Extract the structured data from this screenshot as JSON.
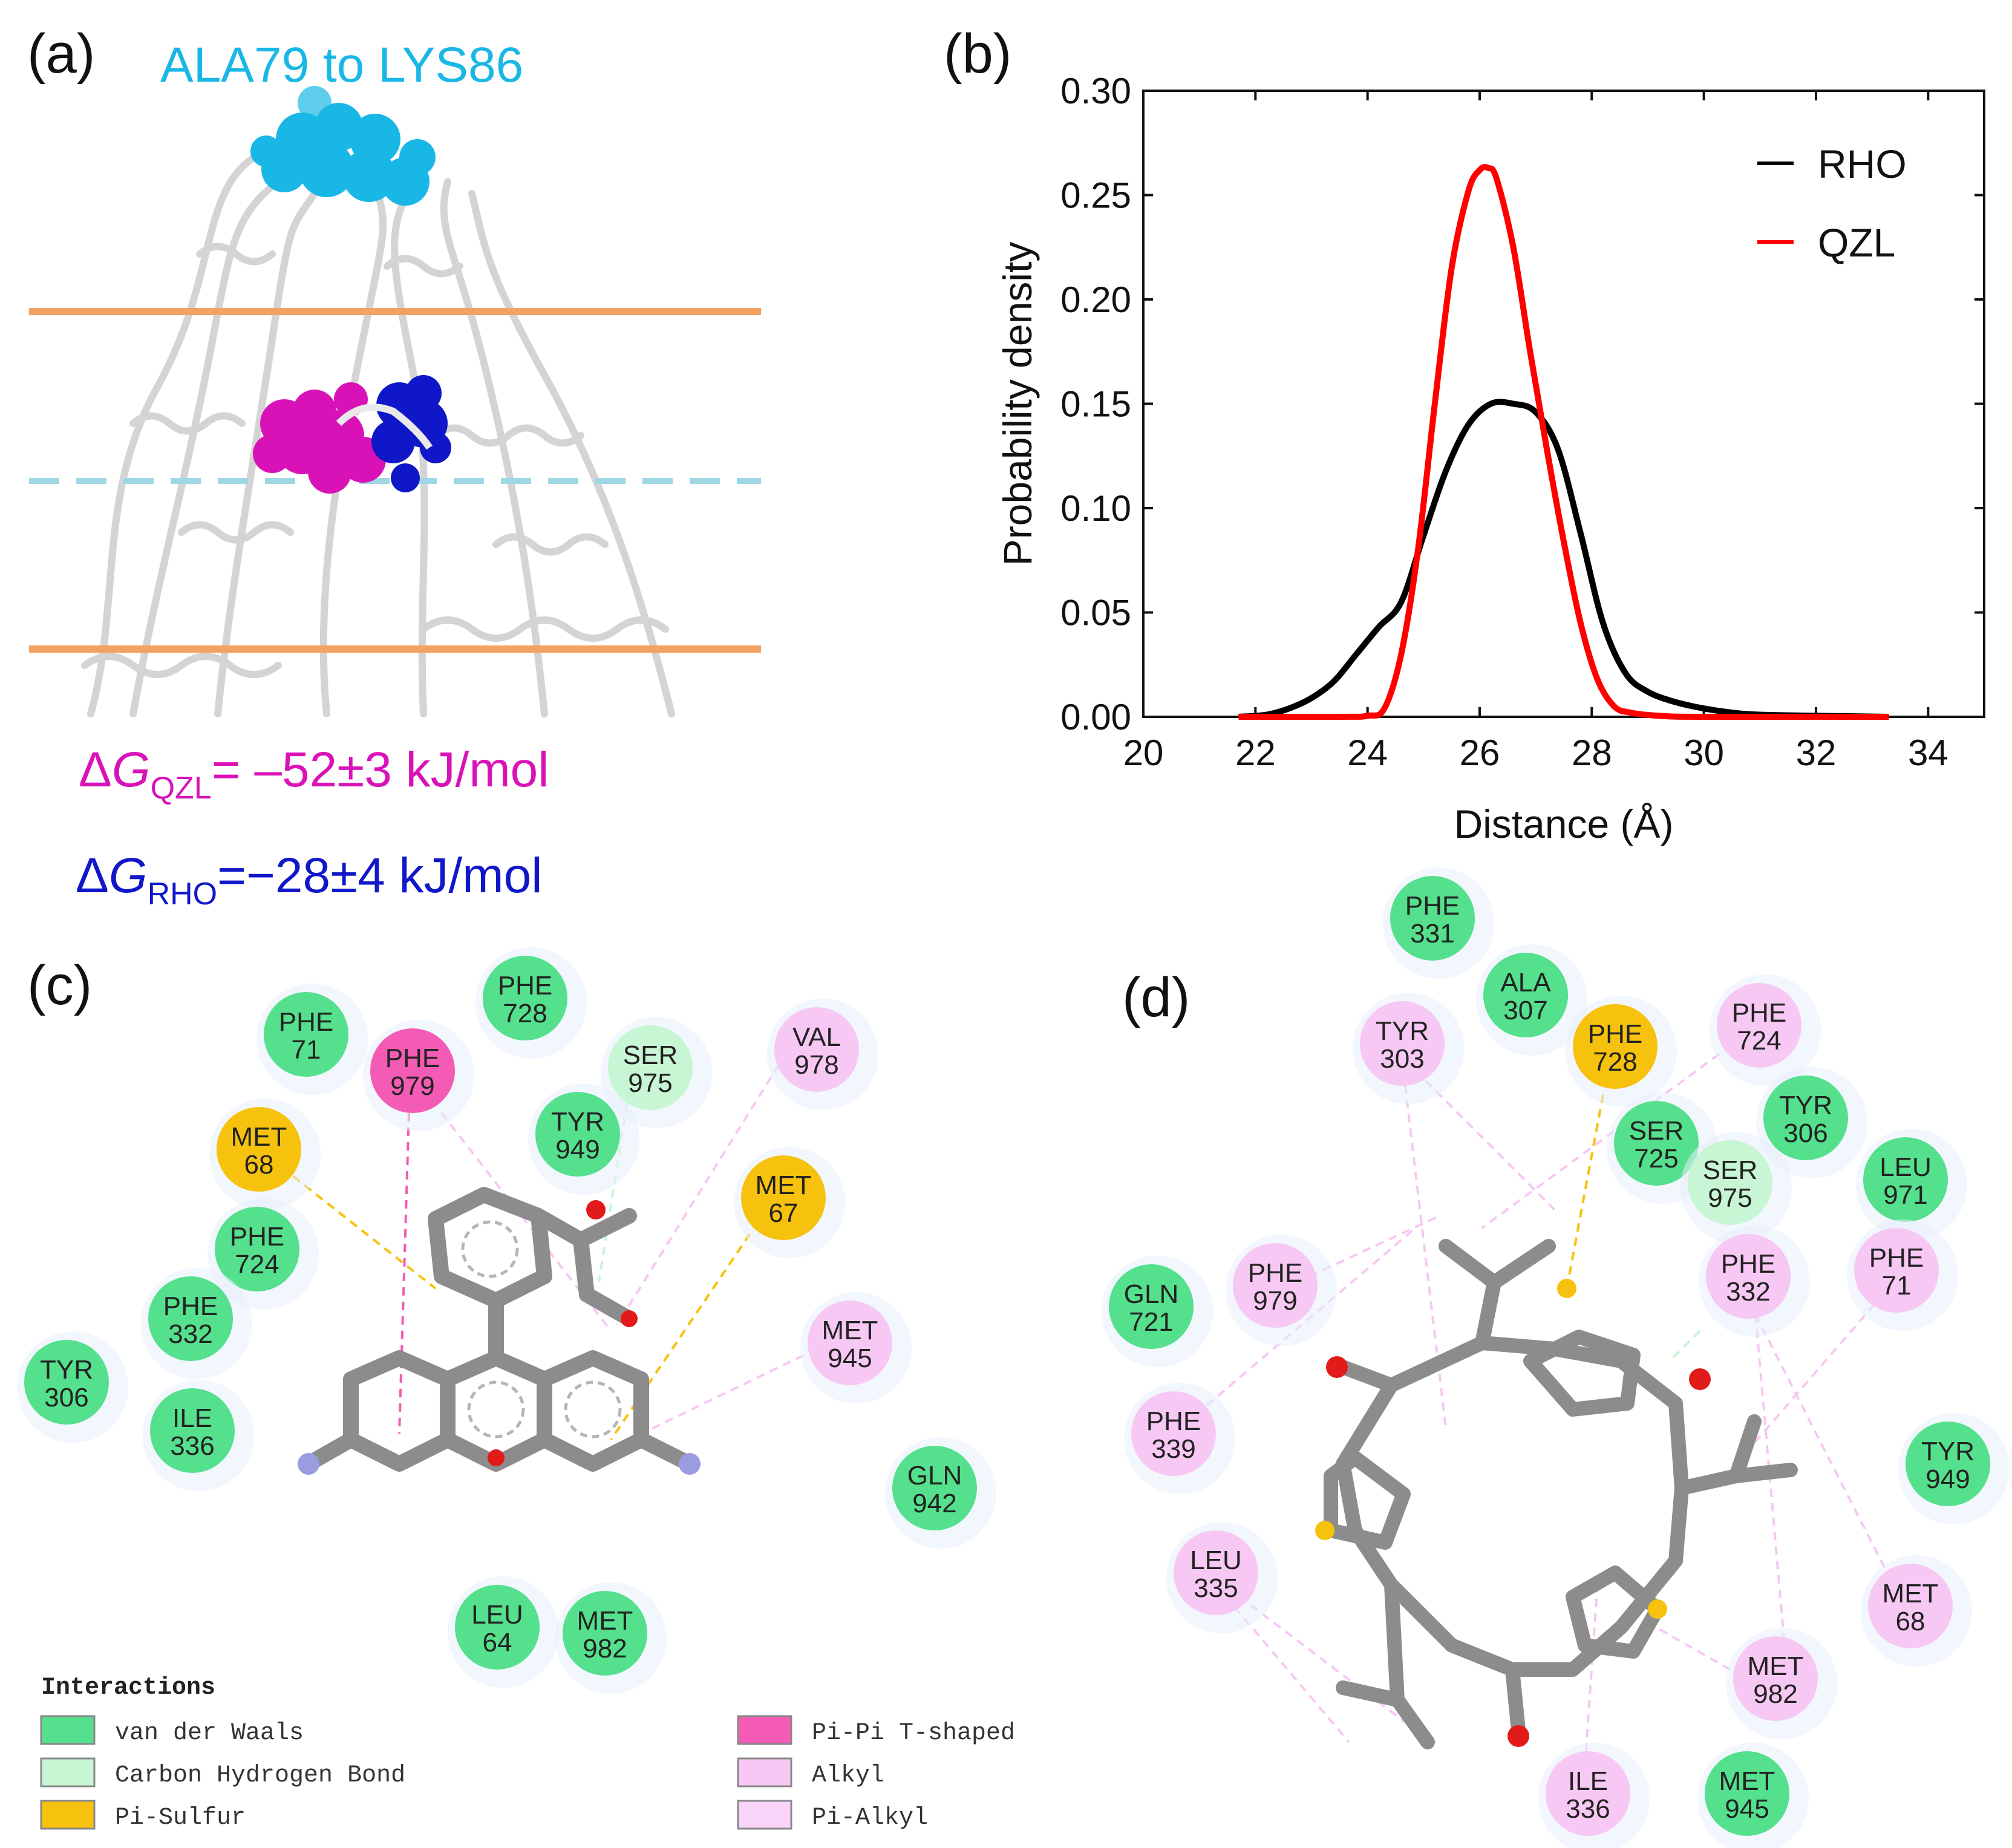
{
  "colors": {
    "cyan": "#19b7e6",
    "magenta": "#d912b8",
    "blue": "#1017c8",
    "orange": "#f4a261",
    "dash": "#9fd8e4",
    "rho": "#000000",
    "qzl": "#ff0000",
    "vdw": "#54e08c",
    "chb": "#c8f5d4",
    "pisulfur": "#f6c20e",
    "pipi": "#f35bb4",
    "alkyl": "#f7c8f3",
    "pialkyl": "#fad3f8",
    "bond": "#8c8c8c"
  },
  "panel_a": {
    "label": "(a)",
    "region_label": "ALA79 to LYS86",
    "dg_qzl": {
      "prefix": "Δ",
      "g": "G",
      "sub": "QZL",
      "value": "= –52±3 kJ/mol"
    },
    "dg_rho": {
      "prefix": "Δ",
      "g": "G",
      "sub": "RHO",
      "value": "=−28±4 kJ/mol"
    }
  },
  "panel_b": {
    "label": "(b)"
  },
  "chart_data": {
    "type": "line",
    "xlabel": "Distance (Å)",
    "ylabel": "Probability density",
    "xlim": [
      20,
      35
    ],
    "ylim": [
      0,
      0.3
    ],
    "xticks": [
      20,
      22,
      24,
      26,
      28,
      30,
      32,
      34
    ],
    "yticks": [
      0.0,
      0.05,
      0.1,
      0.15,
      0.2,
      0.25,
      0.3
    ],
    "ytick_labels": [
      "0.00",
      "0.05",
      "0.10",
      "0.15",
      "0.20",
      "0.25",
      "0.30"
    ],
    "legend_position": "top-right",
    "series": [
      {
        "name": "RHO",
        "color": "#000000",
        "x": [
          21.7,
          22.2,
          22.6,
          23.0,
          23.4,
          23.8,
          24.2,
          24.6,
          25.0,
          25.4,
          25.8,
          26.2,
          26.6,
          27.0,
          27.4,
          27.8,
          28.2,
          28.6,
          29.0,
          29.5,
          30.0,
          30.5,
          31.0,
          32.0,
          33.3
        ],
        "y": [
          0.0,
          0.001,
          0.004,
          0.009,
          0.017,
          0.03,
          0.043,
          0.055,
          0.087,
          0.118,
          0.14,
          0.15,
          0.15,
          0.146,
          0.128,
          0.088,
          0.045,
          0.021,
          0.012,
          0.007,
          0.004,
          0.002,
          0.001,
          0.0005,
          0.0
        ]
      },
      {
        "name": "QZL",
        "color": "#ff0000",
        "x": [
          21.7,
          23.5,
          24.0,
          24.3,
          24.6,
          24.9,
          25.2,
          25.5,
          25.8,
          26.0,
          26.15,
          26.3,
          26.6,
          26.9,
          27.2,
          27.5,
          27.8,
          28.1,
          28.4,
          28.7,
          29.2,
          30.0,
          33.3
        ],
        "y": [
          0.0,
          0.0,
          0.0005,
          0.004,
          0.03,
          0.08,
          0.15,
          0.215,
          0.252,
          0.262,
          0.263,
          0.258,
          0.225,
          0.175,
          0.128,
          0.084,
          0.045,
          0.018,
          0.005,
          0.002,
          0.0005,
          0.0,
          0.0
        ]
      }
    ]
  },
  "panel_c": {
    "label": "(c)",
    "residues": [
      {
        "id": "phe728",
        "name": "PHE",
        "num": "728",
        "type": "vdw"
      },
      {
        "id": "phe71",
        "name": "PHE",
        "num": "71",
        "type": "vdw"
      },
      {
        "id": "phe979",
        "name": "PHE",
        "num": "979",
        "type": "pipi"
      },
      {
        "id": "ser975",
        "name": "SER",
        "num": "975",
        "type": "chb"
      },
      {
        "id": "val978",
        "name": "VAL",
        "num": "978",
        "type": "alkyl"
      },
      {
        "id": "tyr949",
        "name": "TYR",
        "num": "949",
        "type": "vdw"
      },
      {
        "id": "met68",
        "name": "MET",
        "num": "68",
        "type": "pisulfur"
      },
      {
        "id": "met67",
        "name": "MET",
        "num": "67",
        "type": "pisulfur"
      },
      {
        "id": "phe724",
        "name": "PHE",
        "num": "724",
        "type": "vdw"
      },
      {
        "id": "phe332",
        "name": "PHE",
        "num": "332",
        "type": "vdw"
      },
      {
        "id": "met945",
        "name": "MET",
        "num": "945",
        "type": "alkyl"
      },
      {
        "id": "tyr306",
        "name": "TYR",
        "num": "306",
        "type": "vdw"
      },
      {
        "id": "ile336",
        "name": "ILE",
        "num": "336",
        "type": "vdw"
      },
      {
        "id": "gln942",
        "name": "GLN",
        "num": "942",
        "type": "vdw"
      },
      {
        "id": "leu64",
        "name": "LEU",
        "num": "64",
        "type": "vdw"
      },
      {
        "id": "met982",
        "name": "MET",
        "num": "982",
        "type": "vdw"
      }
    ]
  },
  "panel_d": {
    "label": "(d)",
    "residues": [
      {
        "id": "phe331",
        "name": "PHE",
        "num": "331",
        "type": "vdw"
      },
      {
        "id": "ala307",
        "name": "ALA",
        "num": "307",
        "type": "vdw"
      },
      {
        "id": "tyr303",
        "name": "TYR",
        "num": "303",
        "type": "alkyl"
      },
      {
        "id": "phe728",
        "name": "PHE",
        "num": "728",
        "type": "pisulfur"
      },
      {
        "id": "phe724",
        "name": "PHE",
        "num": "724",
        "type": "alkyl"
      },
      {
        "id": "tyr306",
        "name": "TYR",
        "num": "306",
        "type": "vdw"
      },
      {
        "id": "ser725",
        "name": "SER",
        "num": "725",
        "type": "vdw"
      },
      {
        "id": "ser975",
        "name": "SER",
        "num": "975",
        "type": "chb"
      },
      {
        "id": "leu971",
        "name": "LEU",
        "num": "971",
        "type": "vdw"
      },
      {
        "id": "phe979",
        "name": "PHE",
        "num": "979",
        "type": "alkyl"
      },
      {
        "id": "phe332",
        "name": "PHE",
        "num": "332",
        "type": "alkyl"
      },
      {
        "id": "phe71",
        "name": "PHE",
        "num": "71",
        "type": "alkyl"
      },
      {
        "id": "gln721",
        "name": "GLN",
        "num": "721",
        "type": "vdw"
      },
      {
        "id": "phe339",
        "name": "PHE",
        "num": "339",
        "type": "alkyl"
      },
      {
        "id": "tyr949",
        "name": "TYR",
        "num": "949",
        "type": "vdw"
      },
      {
        "id": "leu335",
        "name": "LEU",
        "num": "335",
        "type": "alkyl"
      },
      {
        "id": "met68",
        "name": "MET",
        "num": "68",
        "type": "alkyl"
      },
      {
        "id": "met982",
        "name": "MET",
        "num": "982",
        "type": "alkyl"
      },
      {
        "id": "ile336",
        "name": "ILE",
        "num": "336",
        "type": "alkyl"
      },
      {
        "id": "met945",
        "name": "MET",
        "num": "945",
        "type": "vdw"
      }
    ]
  },
  "legend": {
    "title": "Interactions",
    "items": [
      {
        "label": "van der Waals",
        "type": "vdw"
      },
      {
        "label": "Carbon Hydrogen Bond",
        "type": "chb"
      },
      {
        "label": "Pi-Sulfur",
        "type": "pisulfur"
      },
      {
        "label": "Pi-Pi T-shaped",
        "type": "pipi"
      },
      {
        "label": "Alkyl",
        "type": "alkyl"
      },
      {
        "label": "Pi-Alkyl",
        "type": "pialkyl"
      }
    ]
  }
}
